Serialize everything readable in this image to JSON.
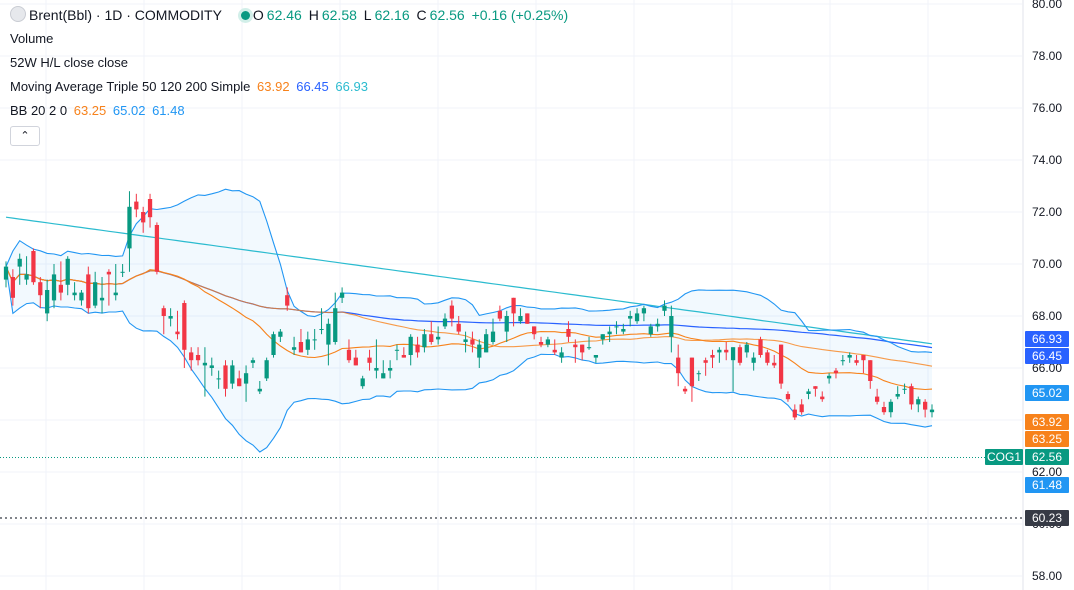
{
  "header": {
    "symbol_title": "Brent(Bbl) · 1D · COMMODITY",
    "ohlc": {
      "o_label": "O",
      "o_value": "62.46",
      "h_label": "H",
      "h_value": "62.58",
      "l_label": "L",
      "l_value": "62.16",
      "c_label": "C",
      "c_value": "62.56",
      "change": "+0.16 (+0.25%)"
    }
  },
  "indicators": {
    "volume": {
      "label": "Volume"
    },
    "hl52": {
      "label": "52W H/L close close"
    },
    "ma": {
      "label": "Moving Average Triple 50 120 200 Simple",
      "v50": "63.92",
      "v120": "66.45",
      "v200": "66.93"
    },
    "bb": {
      "label": "BB 20 2 0",
      "basis": "63.25",
      "upper": "65.02",
      "lower": "61.48"
    },
    "collapse_icon": "chevron-up-icon"
  },
  "colors": {
    "up": "#089981",
    "down": "#f23645",
    "ma50": "#f7821b",
    "ma200": "#2bbbcf",
    "bb_line": "#2962ff",
    "bb_band": "#2196f3",
    "price_tag": "#089981",
    "label_dark": "#363a45"
  },
  "price_scale": {
    "ticks": [
      "80.00",
      "78.00",
      "76.00",
      "74.00",
      "72.00",
      "70.00",
      "68.00",
      "66.00",
      "64.00",
      "62.00",
      "60.00",
      "58.00"
    ],
    "tags": {
      "ma200": "66.93",
      "ma120": "66.45",
      "bb_upper": "65.02",
      "ma50": "63.92",
      "bb_basis": "63.25",
      "symbol": "COG1",
      "last_price": "62.56",
      "bb_lower": "61.48",
      "low_52w": "60.23"
    }
  },
  "chart_data": {
    "type": "candlestick",
    "ylim": [
      57.6,
      80.2
    ],
    "candles": [
      [
        69.4,
        70.1,
        69.1,
        69.9
      ],
      [
        69.5,
        69.8,
        68.4,
        68.7
      ],
      [
        69.9,
        70.4,
        69.2,
        70.2
      ],
      [
        69.4,
        70.3,
        69.2,
        69.6
      ],
      [
        70.5,
        70.6,
        69.2,
        69.3
      ],
      [
        69.3,
        69.5,
        68.3,
        68.8
      ],
      [
        68.1,
        69.4,
        67.8,
        69.0
      ],
      [
        68.6,
        70.0,
        68.3,
        69.6
      ],
      [
        69.2,
        70.1,
        68.6,
        68.9
      ],
      [
        69.2,
        70.3,
        68.8,
        70.2
      ],
      [
        68.8,
        69.3,
        68.6,
        68.9
      ],
      [
        68.6,
        69.0,
        68.4,
        68.9
      ],
      [
        69.6,
        69.9,
        68.1,
        68.3
      ],
      [
        68.4,
        69.7,
        68.3,
        69.3
      ],
      [
        68.6,
        69.5,
        68.1,
        68.7
      ],
      [
        69.7,
        69.8,
        68.4,
        69.6
      ],
      [
        68.8,
        70.0,
        68.6,
        68.9
      ],
      [
        69.7,
        70.0,
        69.5,
        69.7
      ],
      [
        70.6,
        72.8,
        69.7,
        72.2
      ],
      [
        72.4,
        72.7,
        71.8,
        72.1
      ],
      [
        72.0,
        72.2,
        71.2,
        71.6
      ],
      [
        72.5,
        72.7,
        71.4,
        71.8
      ],
      [
        71.5,
        71.6,
        69.6,
        69.7
      ],
      [
        68.3,
        68.4,
        67.3,
        68.0
      ],
      [
        67.9,
        68.3,
        67.6,
        68.0
      ],
      [
        67.4,
        68.2,
        67.1,
        67.3
      ],
      [
        68.5,
        68.6,
        66.0,
        66.7
      ],
      [
        66.6,
        66.8,
        65.9,
        66.3
      ],
      [
        66.5,
        66.8,
        66.1,
        66.3
      ],
      [
        66.1,
        66.8,
        64.9,
        66.2
      ],
      [
        66.0,
        66.4,
        65.7,
        66.1
      ],
      [
        65.6,
        65.9,
        65.2,
        65.6
      ],
      [
        66.1,
        66.3,
        64.9,
        65.2
      ],
      [
        65.4,
        66.3,
        65.2,
        66.1
      ],
      [
        65.6,
        65.9,
        65.3,
        65.3
      ],
      [
        65.4,
        66.1,
        64.7,
        65.8
      ],
      [
        66.2,
        66.4,
        66.0,
        66.3
      ],
      [
        65.1,
        65.5,
        65.0,
        65.2
      ],
      [
        65.6,
        66.4,
        65.5,
        66.3
      ],
      [
        66.5,
        67.4,
        66.4,
        67.3
      ],
      [
        67.2,
        67.5,
        67.0,
        67.4
      ],
      [
        68.8,
        69.1,
        68.2,
        68.4
      ],
      [
        66.7,
        67.2,
        66.5,
        66.8
      ],
      [
        67.0,
        67.5,
        66.6,
        66.6
      ],
      [
        66.7,
        67.4,
        66.5,
        67.1
      ],
      [
        67.1,
        67.5,
        66.7,
        67.1
      ],
      [
        67.5,
        68.3,
        67.3,
        67.5
      ],
      [
        66.9,
        67.9,
        66.1,
        67.7
      ],
      [
        67.0,
        68.9,
        66.9,
        68.3
      ],
      [
        68.7,
        69.1,
        68.5,
        68.9
      ],
      [
        66.7,
        67.1,
        66.2,
        66.3
      ],
      [
        66.4,
        66.7,
        66.1,
        66.1
      ],
      [
        65.3,
        65.7,
        65.2,
        65.6
      ],
      [
        66.4,
        66.7,
        65.9,
        66.2
      ],
      [
        65.9,
        67.1,
        65.6,
        66.0
      ],
      [
        65.6,
        66.3,
        65.6,
        65.8
      ],
      [
        65.9,
        66.3,
        65.6,
        66.0
      ],
      [
        66.7,
        66.9,
        66.3,
        66.7
      ],
      [
        66.5,
        66.8,
        66.4,
        66.4
      ],
      [
        66.5,
        67.3,
        66.1,
        67.2
      ],
      [
        66.9,
        67.2,
        66.4,
        66.6
      ],
      [
        66.8,
        67.5,
        66.6,
        67.3
      ],
      [
        67.3,
        67.8,
        66.9,
        67.0
      ],
      [
        67.1,
        67.6,
        66.9,
        67.2
      ],
      [
        67.6,
        68.1,
        67.5,
        67.9
      ],
      [
        68.4,
        68.6,
        67.6,
        67.9
      ],
      [
        67.7,
        68.0,
        67.3,
        67.4
      ],
      [
        67.0,
        67.4,
        66.6,
        67.1
      ],
      [
        67.1,
        67.4,
        66.6,
        66.9
      ],
      [
        66.4,
        67.1,
        66.0,
        66.9
      ],
      [
        66.6,
        67.5,
        66.6,
        67.3
      ],
      [
        67.0,
        67.9,
        66.9,
        67.4
      ],
      [
        68.2,
        68.4,
        67.8,
        67.9
      ],
      [
        67.4,
        68.2,
        67.0,
        68.0
      ],
      [
        68.7,
        68.7,
        67.6,
        68.1
      ],
      [
        67.8,
        68.3,
        67.7,
        68.0
      ],
      [
        68.1,
        68.1,
        67.7,
        67.7
      ],
      [
        67.6,
        67.6,
        67.1,
        67.3
      ],
      [
        67.0,
        67.2,
        66.8,
        66.9
      ],
      [
        66.9,
        67.2,
        66.8,
        67.1
      ],
      [
        66.7,
        67.1,
        66.5,
        66.6
      ],
      [
        66.4,
        66.8,
        66.2,
        66.6
      ],
      [
        67.5,
        67.8,
        67.0,
        67.2
      ],
      [
        66.9,
        67.1,
        66.2,
        66.8
      ],
      [
        66.9,
        66.9,
        66.3,
        66.6
      ],
      [
        66.8,
        67.2,
        66.7,
        66.8
      ],
      [
        66.4,
        66.5,
        66.2,
        66.5
      ],
      [
        67.1,
        67.3,
        66.9,
        67.3
      ],
      [
        67.3,
        67.6,
        67.0,
        67.4
      ],
      [
        67.6,
        67.8,
        67.3,
        67.6
      ],
      [
        67.4,
        67.7,
        67.3,
        67.5
      ],
      [
        67.9,
        68.2,
        67.6,
        68.0
      ],
      [
        67.8,
        68.3,
        67.7,
        68.1
      ],
      [
        68.1,
        68.4,
        67.8,
        68.3
      ],
      [
        67.3,
        67.7,
        67.2,
        67.6
      ],
      [
        67.6,
        67.9,
        67.4,
        67.7
      ],
      [
        68.2,
        68.6,
        68.0,
        68.4
      ],
      [
        67.2,
        68.4,
        66.6,
        68.0
      ],
      [
        66.4,
        66.9,
        65.3,
        65.8
      ],
      [
        65.2,
        65.3,
        65.0,
        65.1
      ],
      [
        66.4,
        66.4,
        64.7,
        65.3
      ],
      [
        65.8,
        65.9,
        65.5,
        65.8
      ],
      [
        66.3,
        66.4,
        65.7,
        66.2
      ],
      [
        66.5,
        66.7,
        66.0,
        66.4
      ],
      [
        66.6,
        66.8,
        66.2,
        66.7
      ],
      [
        66.7,
        67.0,
        66.3,
        66.6
      ],
      [
        66.3,
        66.8,
        65.1,
        66.8
      ],
      [
        66.8,
        66.9,
        66.1,
        66.2
      ],
      [
        66.6,
        67.0,
        66.4,
        66.9
      ],
      [
        66.2,
        66.6,
        65.9,
        66.4
      ],
      [
        67.1,
        67.2,
        66.4,
        66.5
      ],
      [
        66.6,
        66.7,
        66.1,
        66.2
      ],
      [
        66.2,
        66.5,
        66.0,
        66.1
      ],
      [
        66.9,
        66.9,
        65.2,
        65.4
      ],
      [
        65.0,
        65.1,
        64.7,
        64.8
      ],
      [
        64.4,
        64.6,
        64.0,
        64.1
      ],
      [
        64.6,
        64.8,
        64.2,
        64.3
      ],
      [
        65.0,
        65.2,
        64.8,
        65.1
      ],
      [
        65.3,
        65.3,
        64.9,
        65.2
      ],
      [
        64.9,
        65.1,
        64.7,
        64.8
      ],
      [
        65.6,
        65.8,
        65.4,
        65.7
      ],
      [
        65.9,
        66.0,
        65.6,
        65.8
      ],
      [
        66.3,
        66.5,
        66.1,
        66.3
      ],
      [
        66.4,
        66.6,
        66.2,
        66.5
      ],
      [
        66.3,
        66.5,
        66.1,
        66.2
      ],
      [
        66.5,
        66.5,
        65.8,
        66.3
      ],
      [
        66.3,
        66.3,
        65.2,
        65.5
      ],
      [
        64.9,
        65.2,
        64.6,
        64.7
      ],
      [
        64.5,
        64.7,
        64.2,
        64.3
      ],
      [
        64.3,
        64.8,
        64.1,
        64.7
      ],
      [
        64.9,
        65.3,
        64.8,
        65.0
      ],
      [
        65.2,
        65.4,
        65.0,
        65.2
      ],
      [
        65.3,
        65.4,
        64.4,
        64.6
      ],
      [
        64.6,
        64.9,
        64.3,
        64.8
      ],
      [
        64.7,
        64.8,
        64.1,
        64.4
      ],
      [
        64.3,
        64.6,
        64.1,
        64.4
      ]
    ]
  }
}
